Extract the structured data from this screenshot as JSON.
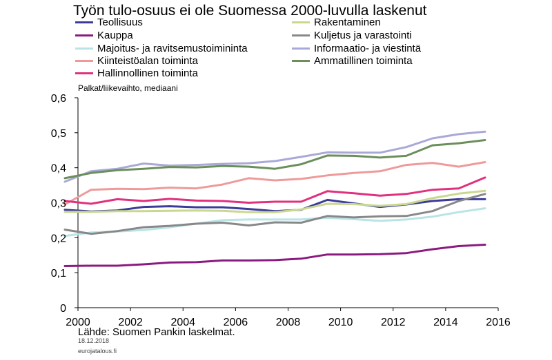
{
  "chart_data": {
    "type": "line",
    "title": "Työn tulo-osuus ei ole Suomessa 2000-luvulla laskenut",
    "ylabel": "Palkat/liikevaihto, mediaani",
    "xlabel": "",
    "xlim": [
      2000,
      2016
    ],
    "ylim": [
      0,
      0.6
    ],
    "x_ticks": [
      "2000",
      "2002",
      "2004",
      "2006",
      "2008",
      "2010",
      "2012",
      "2014",
      "2016"
    ],
    "y_ticks": [
      "0",
      "0,1",
      "0,2",
      "0,3",
      "0,4",
      "0,5",
      "0,6"
    ],
    "grid": false,
    "legend_position": "top",
    "x": [
      1999.5,
      2000.5,
      2001.5,
      2002.5,
      2003.5,
      2004.5,
      2005.5,
      2006.5,
      2007.5,
      2008.5,
      2009.5,
      2010.5,
      2011.5,
      2012.5,
      2013.5,
      2014.5,
      2015.5
    ],
    "series": [
      {
        "name": "Teollisuus",
        "color": "#3b3b9a",
        "values": [
          0.28,
          0.275,
          0.278,
          0.288,
          0.29,
          0.287,
          0.287,
          0.282,
          0.276,
          0.28,
          0.308,
          0.298,
          0.288,
          0.295,
          0.305,
          0.31,
          0.31
        ]
      },
      {
        "name": "Kauppa",
        "color": "#8b1a80",
        "values": [
          0.119,
          0.12,
          0.12,
          0.124,
          0.129,
          0.13,
          0.135,
          0.135,
          0.136,
          0.14,
          0.152,
          0.152,
          0.153,
          0.156,
          0.167,
          0.176,
          0.18
        ]
      },
      {
        "name": "Majoitus- ja ravitsemustoimininta",
        "color": "#b8e4e6",
        "values": [
          0.205,
          0.215,
          0.218,
          0.222,
          0.23,
          0.24,
          0.25,
          0.252,
          0.252,
          0.252,
          0.257,
          0.253,
          0.248,
          0.252,
          0.26,
          0.273,
          0.284
        ]
      },
      {
        "name": "Kiinteistöalan toiminta",
        "color": "#ef9a9a",
        "values": [
          0.295,
          0.337,
          0.34,
          0.339,
          0.343,
          0.341,
          0.352,
          0.37,
          0.364,
          0.368,
          0.378,
          0.385,
          0.39,
          0.408,
          0.414,
          0.403,
          0.416
        ]
      },
      {
        "name": "Hallinnollinen toiminta",
        "color": "#e0307e",
        "values": [
          0.305,
          0.297,
          0.31,
          0.305,
          0.311,
          0.306,
          0.305,
          0.3,
          0.303,
          0.303,
          0.333,
          0.327,
          0.32,
          0.325,
          0.337,
          0.341,
          0.372
        ]
      },
      {
        "name": "Rakentaminen",
        "color": "#c8d88e",
        "values": [
          0.274,
          0.274,
          0.276,
          0.276,
          0.277,
          0.278,
          0.277,
          0.273,
          0.273,
          0.281,
          0.297,
          0.296,
          0.291,
          0.296,
          0.313,
          0.326,
          0.334
        ]
      },
      {
        "name": "Kuljetus ja varastointi",
        "color": "#888888",
        "values": [
          0.223,
          0.211,
          0.219,
          0.23,
          0.234,
          0.24,
          0.243,
          0.235,
          0.244,
          0.243,
          0.262,
          0.258,
          0.261,
          0.262,
          0.276,
          0.305,
          0.325
        ]
      },
      {
        "name": "Informaatio- ja viestintä",
        "color": "#aaa8d8",
        "values": [
          0.36,
          0.39,
          0.397,
          0.412,
          0.406,
          0.408,
          0.411,
          0.413,
          0.419,
          0.431,
          0.444,
          0.443,
          0.443,
          0.459,
          0.484,
          0.496,
          0.503
        ]
      },
      {
        "name": "Ammatillinen toiminta",
        "color": "#6b8f5b",
        "values": [
          0.37,
          0.385,
          0.393,
          0.397,
          0.402,
          0.401,
          0.405,
          0.403,
          0.397,
          0.41,
          0.435,
          0.434,
          0.429,
          0.434,
          0.464,
          0.47,
          0.479
        ]
      }
    ]
  },
  "source": "Lähde: Suomen Pankin laskelmat.",
  "date": "18.12.2018",
  "site": "eurojatalous.fi"
}
